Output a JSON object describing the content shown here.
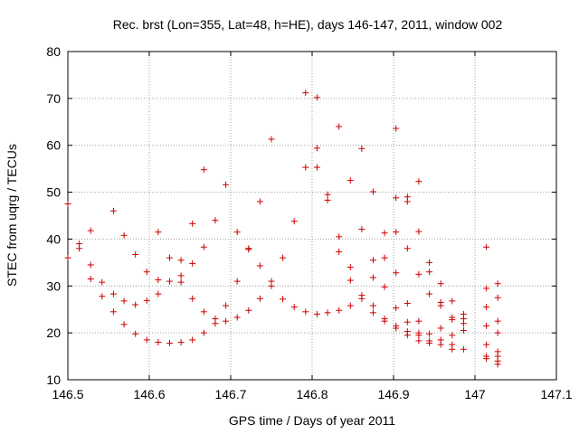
{
  "chart_data": {
    "type": "scatter",
    "title": "Rec. brst (Lon=355, Lat=48, h=HE), days 146-147, 2011, window 002",
    "xlabel": "GPS time / Days of year 2011",
    "ylabel": "STEC from uqrg / TECUs",
    "xlim": [
      146.5,
      147.1
    ],
    "ylim": [
      10,
      80
    ],
    "xticks": [
      146.5,
      146.6,
      146.7,
      146.8,
      146.9,
      147.0,
      147.1
    ],
    "xtick_labels": [
      "146.5",
      "146.6",
      "146.7",
      "146.8",
      "146.9",
      "147",
      "147.1"
    ],
    "yticks": [
      10,
      20,
      30,
      40,
      50,
      60,
      70,
      80
    ],
    "ytick_labels": [
      "10",
      "20",
      "30",
      "40",
      "50",
      "60",
      "70",
      "80"
    ],
    "grid": true,
    "marker": "+",
    "color": "#cc0000",
    "series": [
      {
        "name": "STEC",
        "points": [
          [
            146.5,
            47.5
          ],
          [
            146.5,
            36.0
          ],
          [
            146.514,
            39.0
          ],
          [
            146.514,
            38.0
          ],
          [
            146.528,
            41.8
          ],
          [
            146.528,
            34.5
          ],
          [
            146.528,
            31.5
          ],
          [
            146.542,
            30.8
          ],
          [
            146.542,
            27.8
          ],
          [
            146.556,
            46.0
          ],
          [
            146.556,
            28.3
          ],
          [
            146.556,
            24.5
          ],
          [
            146.569,
            40.8
          ],
          [
            146.569,
            26.8
          ],
          [
            146.569,
            21.8
          ],
          [
            146.583,
            36.7
          ],
          [
            146.583,
            26.0
          ],
          [
            146.583,
            19.8
          ],
          [
            146.597,
            33.0
          ],
          [
            146.597,
            26.9
          ],
          [
            146.597,
            18.5
          ],
          [
            146.611,
            41.5
          ],
          [
            146.611,
            31.3
          ],
          [
            146.611,
            28.3
          ],
          [
            146.611,
            18.0
          ],
          [
            146.625,
            36.0
          ],
          [
            146.625,
            31.0
          ],
          [
            146.625,
            17.8
          ],
          [
            146.639,
            35.5
          ],
          [
            146.639,
            32.2
          ],
          [
            146.639,
            30.8
          ],
          [
            146.639,
            18.0
          ],
          [
            146.653,
            43.3
          ],
          [
            146.653,
            34.8
          ],
          [
            146.653,
            27.3
          ],
          [
            146.653,
            18.5
          ],
          [
            146.667,
            54.8
          ],
          [
            146.667,
            38.3
          ],
          [
            146.667,
            24.5
          ],
          [
            146.667,
            20.0
          ],
          [
            146.681,
            44.0
          ],
          [
            146.681,
            23.0
          ],
          [
            146.681,
            22.0
          ],
          [
            146.694,
            51.6
          ],
          [
            146.694,
            25.8
          ],
          [
            146.694,
            22.5
          ],
          [
            146.708,
            41.5
          ],
          [
            146.708,
            31.0
          ],
          [
            146.708,
            23.3
          ],
          [
            146.722,
            38.0
          ],
          [
            146.722,
            37.8
          ],
          [
            146.722,
            24.8
          ],
          [
            146.736,
            48.0
          ],
          [
            146.736,
            34.3
          ],
          [
            146.736,
            27.3
          ],
          [
            146.75,
            61.3
          ],
          [
            146.75,
            31.0
          ],
          [
            146.75,
            30.0
          ],
          [
            146.764,
            36.0
          ],
          [
            146.764,
            27.2
          ],
          [
            146.778,
            43.8
          ],
          [
            146.778,
            25.5
          ],
          [
            146.792,
            71.2
          ],
          [
            146.792,
            55.3
          ],
          [
            146.792,
            24.5
          ],
          [
            146.806,
            70.2
          ],
          [
            146.806,
            59.4
          ],
          [
            146.806,
            55.3
          ],
          [
            146.806,
            24.0
          ],
          [
            146.819,
            49.5
          ],
          [
            146.819,
            48.3
          ],
          [
            146.819,
            24.3
          ],
          [
            146.833,
            64.0
          ],
          [
            146.833,
            40.5
          ],
          [
            146.833,
            37.3
          ],
          [
            146.833,
            24.8
          ],
          [
            146.847,
            52.5
          ],
          [
            146.847,
            34.0
          ],
          [
            146.847,
            31.2
          ],
          [
            146.847,
            25.8
          ],
          [
            146.861,
            59.3
          ],
          [
            146.861,
            42.1
          ],
          [
            146.861,
            28.0
          ],
          [
            146.861,
            27.3
          ],
          [
            146.875,
            50.1
          ],
          [
            146.875,
            35.5
          ],
          [
            146.875,
            31.8
          ],
          [
            146.875,
            25.8
          ],
          [
            146.875,
            24.3
          ],
          [
            146.889,
            41.3
          ],
          [
            146.889,
            36.0
          ],
          [
            146.889,
            29.8
          ],
          [
            146.889,
            23.0
          ],
          [
            146.889,
            22.5
          ],
          [
            146.903,
            63.6
          ],
          [
            146.903,
            48.8
          ],
          [
            146.903,
            41.5
          ],
          [
            146.903,
            32.8
          ],
          [
            146.903,
            25.3
          ],
          [
            146.903,
            21.5
          ],
          [
            146.903,
            21.0
          ],
          [
            146.917,
            49.0
          ],
          [
            146.917,
            48.0
          ],
          [
            146.917,
            38.0
          ],
          [
            146.917,
            26.3
          ],
          [
            146.917,
            22.3
          ],
          [
            146.917,
            20.3
          ],
          [
            146.917,
            19.5
          ],
          [
            146.931,
            52.3
          ],
          [
            146.931,
            41.6
          ],
          [
            146.931,
            32.5
          ],
          [
            146.931,
            22.5
          ],
          [
            146.931,
            20.0
          ],
          [
            146.931,
            19.5
          ],
          [
            146.931,
            18.3
          ],
          [
            146.944,
            35.0
          ],
          [
            146.944,
            33.0
          ],
          [
            146.944,
            28.3
          ],
          [
            146.944,
            19.8
          ],
          [
            146.944,
            18.3
          ],
          [
            146.944,
            17.8
          ],
          [
            146.958,
            30.5
          ],
          [
            146.958,
            26.5
          ],
          [
            146.958,
            25.8
          ],
          [
            146.958,
            21.0
          ],
          [
            146.958,
            18.5
          ],
          [
            146.958,
            17.5
          ],
          [
            146.972,
            26.8
          ],
          [
            146.972,
            23.3
          ],
          [
            146.972,
            22.8
          ],
          [
            146.972,
            19.5
          ],
          [
            146.972,
            17.5
          ],
          [
            146.972,
            16.5
          ],
          [
            146.986,
            24.0
          ],
          [
            146.986,
            23.0
          ],
          [
            146.986,
            22.0
          ],
          [
            146.986,
            20.5
          ],
          [
            146.986,
            16.5
          ],
          [
            147.014,
            38.3
          ],
          [
            147.014,
            29.5
          ],
          [
            147.014,
            25.5
          ],
          [
            147.014,
            21.5
          ],
          [
            147.014,
            17.5
          ],
          [
            147.014,
            15.0
          ],
          [
            147.014,
            14.5
          ],
          [
            147.028,
            30.5
          ],
          [
            147.028,
            27.5
          ],
          [
            147.028,
            22.5
          ],
          [
            147.028,
            20.0
          ],
          [
            147.028,
            16.0
          ],
          [
            147.028,
            15.0
          ],
          [
            147.028,
            14.0
          ],
          [
            147.028,
            13.3
          ]
        ]
      }
    ]
  }
}
